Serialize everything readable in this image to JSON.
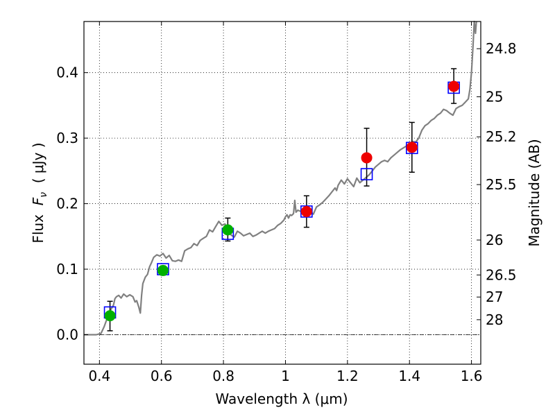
{
  "chart_data": {
    "type": "scatter",
    "xlabel": "Wavelength  λ (μm)",
    "ylabel": "Flux  F_ν  ( μJy )",
    "ylabel_parts": {
      "prefix": "Flux  ",
      "symbol": "F",
      "subscript": "ν",
      "suffix": "  ( μJy )"
    },
    "y2label": "Magnitude (AB)",
    "xlim": [
      0.35,
      1.63
    ],
    "ylim": [
      -0.045,
      0.478
    ],
    "xticks": [
      0.4,
      0.6,
      0.8,
      1.0,
      1.2,
      1.4,
      1.6
    ],
    "xtick_labels": [
      "0.4",
      "0.6",
      "0.8",
      "1",
      "1.2",
      "1.4",
      "1.6"
    ],
    "yticks": [
      0.0,
      0.1,
      0.2,
      0.3,
      0.4
    ],
    "ytick_labels": [
      "0.0",
      "0.1",
      "0.2",
      "0.3",
      "0.4"
    ],
    "right_ticks": [
      {
        "label": "24.8",
        "flux": 0.4365
      },
      {
        "label": "25",
        "flux": 0.3631
      },
      {
        "label": "25.2",
        "flux": 0.302
      },
      {
        "label": "25.5",
        "flux": 0.2291
      },
      {
        "label": "26",
        "flux": 0.1445
      },
      {
        "label": "26.5",
        "flux": 0.0912
      },
      {
        "label": "27",
        "flux": 0.0575
      },
      {
        "label": "28",
        "flux": 0.0229
      }
    ],
    "grid": true,
    "zero_line": true,
    "series": [
      {
        "marker": "line",
        "color": "#808080",
        "points": [
          [
            0.35,
            0.0
          ],
          [
            0.39,
            0.0
          ],
          [
            0.405,
            0.002
          ],
          [
            0.415,
            0.012
          ],
          [
            0.425,
            0.025
          ],
          [
            0.435,
            0.037
          ],
          [
            0.445,
            0.045
          ],
          [
            0.45,
            0.055
          ],
          [
            0.455,
            0.058
          ],
          [
            0.462,
            0.06
          ],
          [
            0.47,
            0.056
          ],
          [
            0.478,
            0.062
          ],
          [
            0.488,
            0.058
          ],
          [
            0.498,
            0.061
          ],
          [
            0.508,
            0.058
          ],
          [
            0.515,
            0.05
          ],
          [
            0.52,
            0.052
          ],
          [
            0.527,
            0.042
          ],
          [
            0.532,
            0.033
          ],
          [
            0.536,
            0.06
          ],
          [
            0.54,
            0.078
          ],
          [
            0.548,
            0.088
          ],
          [
            0.555,
            0.092
          ],
          [
            0.562,
            0.104
          ],
          [
            0.568,
            0.11
          ],
          [
            0.575,
            0.118
          ],
          [
            0.585,
            0.122
          ],
          [
            0.595,
            0.12
          ],
          [
            0.605,
            0.124
          ],
          [
            0.615,
            0.117
          ],
          [
            0.625,
            0.121
          ],
          [
            0.635,
            0.113
          ],
          [
            0.645,
            0.112
          ],
          [
            0.655,
            0.114
          ],
          [
            0.665,
            0.112
          ],
          [
            0.675,
            0.128
          ],
          [
            0.685,
            0.131
          ],
          [
            0.695,
            0.133
          ],
          [
            0.705,
            0.139
          ],
          [
            0.715,
            0.136
          ],
          [
            0.725,
            0.144
          ],
          [
            0.735,
            0.147
          ],
          [
            0.745,
            0.15
          ],
          [
            0.755,
            0.16
          ],
          [
            0.765,
            0.157
          ],
          [
            0.775,
            0.165
          ],
          [
            0.785,
            0.173
          ],
          [
            0.795,
            0.167
          ],
          [
            0.805,
            0.169
          ],
          [
            0.815,
            0.159
          ],
          [
            0.825,
            0.152
          ],
          [
            0.835,
            0.149
          ],
          [
            0.845,
            0.158
          ],
          [
            0.855,
            0.155
          ],
          [
            0.865,
            0.151
          ],
          [
            0.875,
            0.153
          ],
          [
            0.885,
            0.155
          ],
          [
            0.895,
            0.15
          ],
          [
            0.905,
            0.152
          ],
          [
            0.915,
            0.155
          ],
          [
            0.925,
            0.158
          ],
          [
            0.935,
            0.155
          ],
          [
            0.945,
            0.158
          ],
          [
            0.955,
            0.16
          ],
          [
            0.965,
            0.162
          ],
          [
            0.975,
            0.167
          ],
          [
            0.985,
            0.17
          ],
          [
            0.995,
            0.175
          ],
          [
            1.0,
            0.18
          ],
          [
            1.005,
            0.183
          ],
          [
            1.01,
            0.178
          ],
          [
            1.015,
            0.183
          ],
          [
            1.02,
            0.182
          ],
          [
            1.026,
            0.185
          ],
          [
            1.03,
            0.205
          ],
          [
            1.034,
            0.187
          ],
          [
            1.04,
            0.19
          ],
          [
            1.05,
            0.188
          ],
          [
            1.06,
            0.186
          ],
          [
            1.07,
            0.186
          ],
          [
            1.08,
            0.188
          ],
          [
            1.09,
            0.184
          ],
          [
            1.1,
            0.195
          ],
          [
            1.11,
            0.198
          ],
          [
            1.12,
            0.202
          ],
          [
            1.13,
            0.207
          ],
          [
            1.14,
            0.212
          ],
          [
            1.15,
            0.218
          ],
          [
            1.16,
            0.224
          ],
          [
            1.165,
            0.22
          ],
          [
            1.17,
            0.228
          ],
          [
            1.18,
            0.236
          ],
          [
            1.19,
            0.23
          ],
          [
            1.2,
            0.238
          ],
          [
            1.21,
            0.232
          ],
          [
            1.22,
            0.226
          ],
          [
            1.23,
            0.239
          ],
          [
            1.24,
            0.232
          ],
          [
            1.25,
            0.236
          ],
          [
            1.26,
            0.24
          ],
          [
            1.27,
            0.244
          ],
          [
            1.28,
            0.25
          ],
          [
            1.29,
            0.256
          ],
          [
            1.3,
            0.26
          ],
          [
            1.31,
            0.264
          ],
          [
            1.32,
            0.266
          ],
          [
            1.33,
            0.264
          ],
          [
            1.34,
            0.27
          ],
          [
            1.35,
            0.274
          ],
          [
            1.36,
            0.278
          ],
          [
            1.37,
            0.282
          ],
          [
            1.38,
            0.285
          ],
          [
            1.39,
            0.288
          ],
          [
            1.4,
            0.292
          ],
          [
            1.41,
            0.295
          ],
          [
            1.42,
            0.294
          ],
          [
            1.43,
            0.3
          ],
          [
            1.44,
            0.312
          ],
          [
            1.45,
            0.319
          ],
          [
            1.46,
            0.322
          ],
          [
            1.47,
            0.327
          ],
          [
            1.48,
            0.33
          ],
          [
            1.49,
            0.335
          ],
          [
            1.5,
            0.338
          ],
          [
            1.51,
            0.344
          ],
          [
            1.52,
            0.342
          ],
          [
            1.53,
            0.338
          ],
          [
            1.54,
            0.335
          ],
          [
            1.55,
            0.345
          ],
          [
            1.56,
            0.348
          ],
          [
            1.57,
            0.35
          ],
          [
            1.58,
            0.355
          ],
          [
            1.59,
            0.36
          ],
          [
            1.595,
            0.375
          ],
          [
            1.6,
            0.4
          ],
          [
            1.605,
            0.44
          ],
          [
            1.609,
            0.478
          ],
          [
            1.613,
            0.46
          ],
          [
            1.616,
            0.478
          ]
        ]
      },
      {
        "marker": "open-square",
        "color": "#0000ff",
        "points": [
          [
            0.434,
            0.034
          ],
          [
            0.605,
            0.1
          ],
          [
            0.814,
            0.154
          ],
          [
            1.068,
            0.188
          ],
          [
            1.262,
            0.245
          ],
          [
            1.408,
            0.285
          ],
          [
            1.543,
            0.377
          ]
        ]
      },
      {
        "marker": "filled-circle",
        "color": "#00b000",
        "points": [
          {
            "x": 0.434,
            "y": 0.029,
            "yerr": [
              0.023,
              0.022
            ]
          },
          {
            "x": 0.605,
            "y": 0.098,
            "yerr": [
              0.007,
              0.007
            ]
          },
          {
            "x": 0.814,
            "y": 0.16,
            "yerr": [
              0.017,
              0.018
            ]
          }
        ]
      },
      {
        "marker": "filled-circle",
        "color": "#ee0000",
        "points": [
          {
            "x": 1.068,
            "y": 0.188,
            "yerr": [
              0.024,
              0.024
            ]
          },
          {
            "x": 1.262,
            "y": 0.27,
            "yerr": [
              0.043,
              0.045
            ]
          },
          {
            "x": 1.408,
            "y": 0.286,
            "yerr": [
              0.038,
              0.038
            ]
          },
          {
            "x": 1.543,
            "y": 0.379,
            "yerr": [
              0.026,
              0.027
            ]
          }
        ]
      }
    ]
  }
}
